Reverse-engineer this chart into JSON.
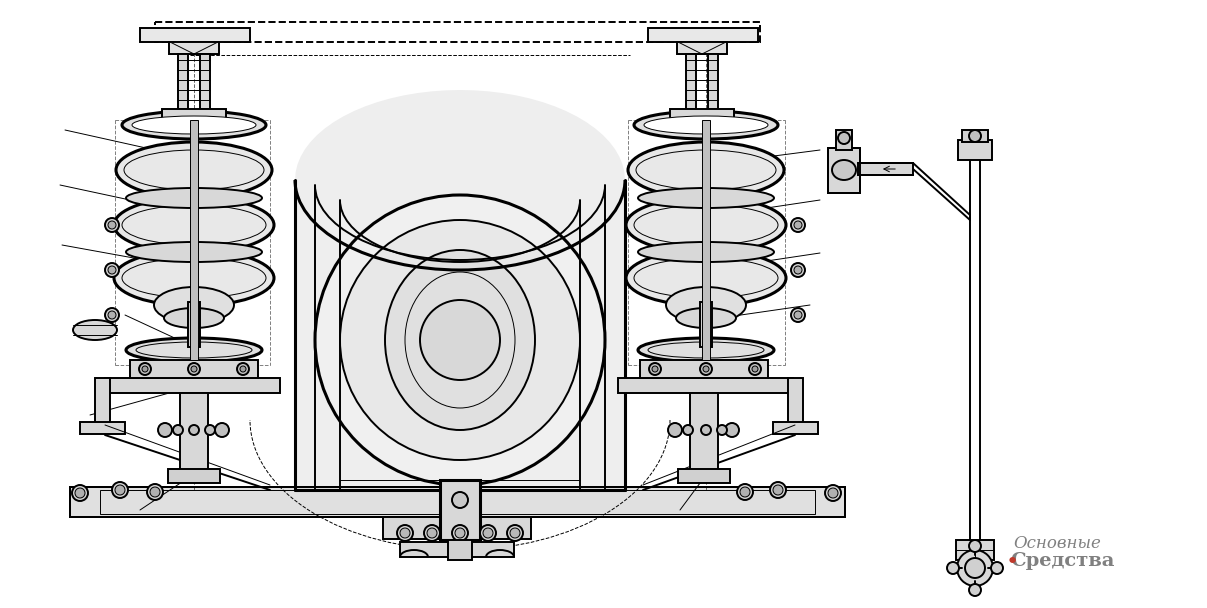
{
  "background_color": "#ffffff",
  "watermark_line1": "Основные",
  "watermark_line2": "Средства",
  "watermark_dot_color": "#c0392b",
  "watermark_text_color": "#808080",
  "lc": "#000000",
  "lw_t": 0.7,
  "lw_m": 1.4,
  "lw_k": 2.2,
  "fig_width": 12.07,
  "fig_height": 6.08,
  "dpi": 100
}
